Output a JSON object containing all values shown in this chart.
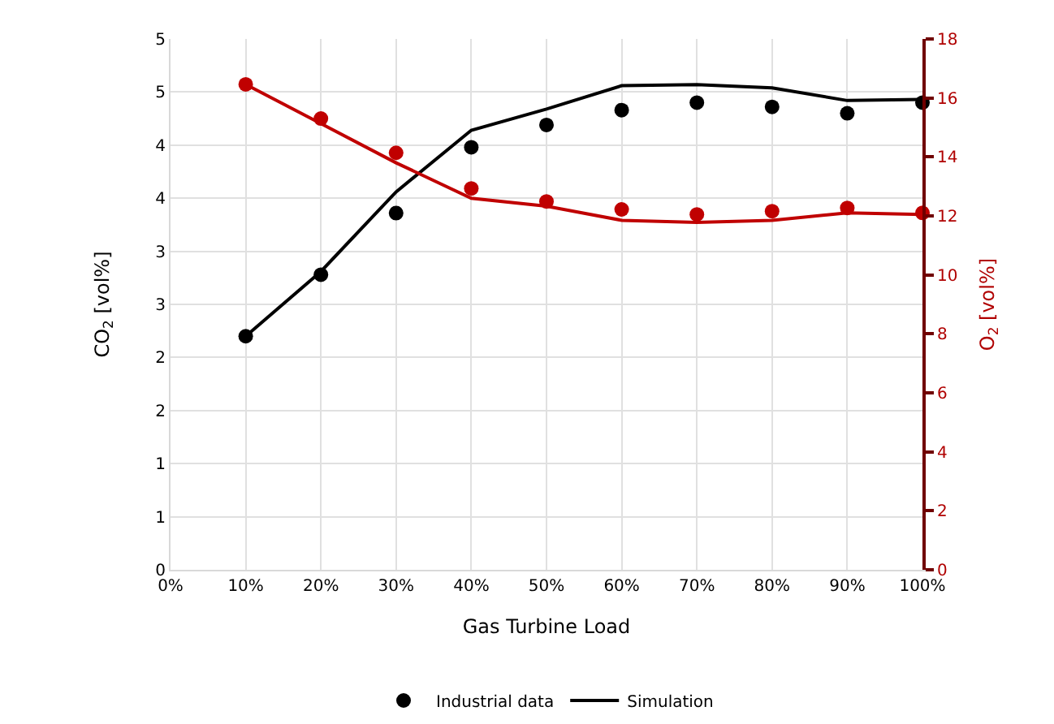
{
  "chart_data": {
    "type": "scatter",
    "xlabel": "Gas Turbine Load",
    "ylabel": "CO$_{2}$ [vol%]",
    "y2label": "O$_{2}$ [vol%]",
    "x": [
      10,
      20,
      30,
      40,
      50,
      60,
      70,
      80,
      90,
      100
    ],
    "xlim": [
      0,
      100
    ],
    "xticks": [
      {
        "value": 0,
        "label": "0%"
      },
      {
        "value": 10,
        "label": "10%"
      },
      {
        "value": 20,
        "label": "20%"
      },
      {
        "value": 30,
        "label": "30%"
      },
      {
        "value": 40,
        "label": "40%"
      },
      {
        "value": 50,
        "label": "50%"
      },
      {
        "value": 60,
        "label": "60%"
      },
      {
        "value": 70,
        "label": "70%"
      },
      {
        "value": 80,
        "label": "80%"
      },
      {
        "value": 90,
        "label": "90%"
      },
      {
        "value": 100,
        "label": "100%"
      }
    ],
    "ylim": [
      0,
      5
    ],
    "yticks": [
      0,
      {
        "value": 0.5,
        "label": "1"
      },
      1,
      {
        "value": 1.5,
        "label": "2"
      },
      2,
      {
        "value": 2.5,
        "label": "3"
      },
      3,
      {
        "value": 3.5,
        "label": "4"
      },
      4,
      {
        "value": 4.5,
        "label": "5"
      },
      5
    ],
    "y2lim": [
      0,
      18
    ],
    "y2ticks": [
      0,
      2,
      4,
      6,
      8,
      10,
      12,
      14,
      16,
      18
    ],
    "grid": true,
    "legend": "bottom",
    "series": [
      {
        "name": "Industrial data",
        "marker": "circle",
        "color": "#000000",
        "values": [
          2.2,
          2.78,
          3.36,
          3.98,
          4.19,
          4.33,
          4.4,
          4.36,
          4.3,
          4.4
        ]
      },
      {
        "name": "Simulation",
        "type": "line",
        "marker": "none",
        "color": "#000000",
        "values": [
          2.2,
          2.81,
          3.56,
          4.14,
          4.34,
          4.56,
          4.57,
          4.54,
          4.42,
          4.43
        ]
      },
      {
        "marker": "circle",
        "axis": "y2",
        "color": "#c00000",
        "values": [
          16.46,
          15.3,
          14.14,
          12.93,
          12.49,
          12.22,
          12.05,
          12.16,
          12.27,
          12.1
        ]
      },
      {
        "type": "line",
        "marker": "none",
        "axis": "y2",
        "color": "#c00000",
        "values": [
          16.46,
          15.13,
          13.8,
          12.6,
          12.33,
          11.85,
          11.78,
          11.85,
          12.1,
          12.05
        ]
      }
    ]
  }
}
